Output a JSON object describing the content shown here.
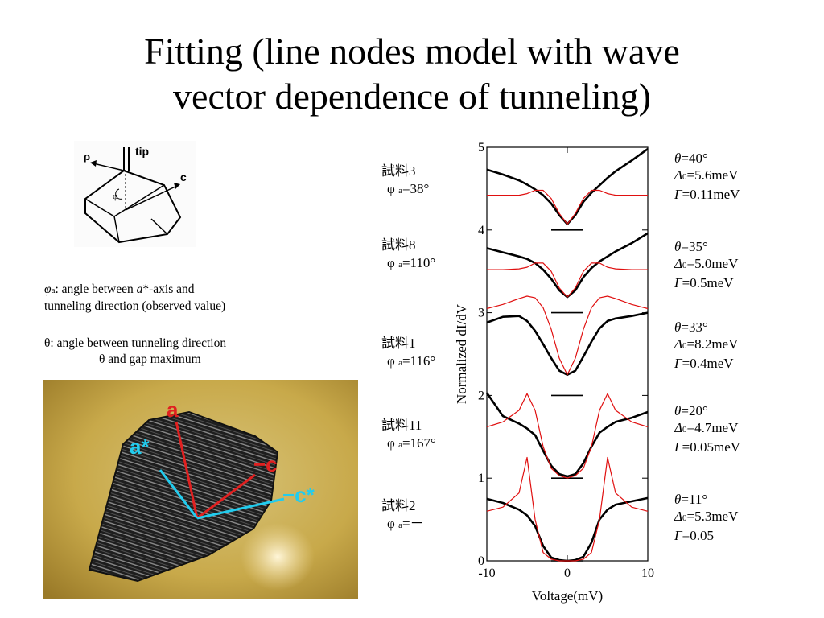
{
  "slide": {
    "title_line1": "Fitting (line nodes model with wave",
    "title_line2": "vector dependence of tunneling)"
  },
  "diagram": {
    "tip_label": "tip",
    "rho_label": "ρ",
    "c_label": "c",
    "phi_label": "φ"
  },
  "notes": {
    "phi_symbol": "φ",
    "phi_sub": "a",
    "phi_text_a": ": angle between ",
    "phi_text_astar": "a",
    "phi_text_b": "*-axis and",
    "phi_line2": "tunneling direction (observed value)",
    "theta_line1": "θ: angle between tunneling direction",
    "theta_line2": "θ and gap maximum"
  },
  "photo": {
    "a": "a",
    "a_star": "a*",
    "minus_c": "−c",
    "minus_c_star": "−c*"
  },
  "samples": [
    {
      "name": "試料3",
      "phi": "φ",
      "sub": "a",
      "value": "=38°"
    },
    {
      "name": "試料8",
      "phi": "φ",
      "sub": "a",
      "value": "=110°"
    },
    {
      "name": "試料1",
      "phi": "φ",
      "sub": "a",
      "value": "=116°"
    },
    {
      "name": "試料11",
      "phi": "φ",
      "sub": "a",
      "value": "=167°"
    },
    {
      "name": "試料2",
      "phi": "φ",
      "sub": "a",
      "value": "=－"
    }
  ],
  "fits": [
    {
      "theta": "θ",
      "theta_val": "=40°",
      "delta": "Δ",
      "delta_sub": "0",
      "delta_val": "=5.6meV",
      "gamma": "Γ",
      "gamma_val": "=0.11meV"
    },
    {
      "theta": "θ",
      "theta_val": "=35°",
      "delta": "Δ",
      "delta_sub": "0",
      "delta_val": "=5.0meV",
      "gamma": "Γ",
      "gamma_val": "=0.5meV"
    },
    {
      "theta": "θ",
      "theta_val": "=33°",
      "delta": "Δ",
      "delta_sub": "0",
      "delta_val": "=8.2meV",
      "gamma": "Γ",
      "gamma_val": "=0.4meV"
    },
    {
      "theta": "θ",
      "theta_val": "=20°",
      "delta": "Δ",
      "delta_sub": "0",
      "delta_val": "=4.7meV",
      "gamma": "Γ",
      "gamma_val": "=0.05meV"
    },
    {
      "theta": "θ",
      "theta_val": "=11°",
      "delta": "Δ",
      "delta_sub": "0",
      "delta_val": "=5.3meV",
      "gamma": "Γ",
      "gamma_val": "=0.05"
    }
  ],
  "chart_data": {
    "type": "line",
    "title": "",
    "xlabel": "Voltage(mV)",
    "ylabel": "Normalized dI/dV",
    "xlim": [
      -10,
      10
    ],
    "ylim": [
      0,
      5
    ],
    "x_ticks": [
      -10,
      0,
      10
    ],
    "y_ticks": [
      0,
      1,
      2,
      3,
      4,
      5
    ],
    "grid": false,
    "legend": "none",
    "colors": {
      "measured": "#000000",
      "fit": "#e01010"
    },
    "x": [
      -10,
      -8,
      -6,
      -5,
      -4,
      -3,
      -2,
      -1,
      0,
      1,
      2,
      3,
      4,
      5,
      6,
      8,
      10
    ],
    "series": [
      {
        "kind": "measured",
        "values": [
          4.73,
          4.67,
          4.6,
          4.55,
          4.49,
          4.42,
          4.32,
          4.18,
          4.07,
          4.18,
          4.34,
          4.45,
          4.54,
          4.63,
          4.71,
          4.84,
          4.98
        ]
      },
      {
        "kind": "fit",
        "values": [
          4.42,
          4.42,
          4.42,
          4.44,
          4.48,
          4.48,
          4.38,
          4.2,
          4.07,
          4.2,
          4.38,
          4.48,
          4.48,
          4.44,
          4.42,
          4.42,
          4.42
        ]
      },
      {
        "kind": "measured",
        "values": [
          3.78,
          3.73,
          3.68,
          3.65,
          3.6,
          3.52,
          3.41,
          3.27,
          3.19,
          3.27,
          3.43,
          3.54,
          3.62,
          3.68,
          3.74,
          3.84,
          3.96
        ]
      },
      {
        "kind": "fit",
        "values": [
          3.52,
          3.52,
          3.53,
          3.55,
          3.6,
          3.6,
          3.5,
          3.3,
          3.19,
          3.3,
          3.5,
          3.6,
          3.6,
          3.55,
          3.53,
          3.52,
          3.52
        ]
      },
      {
        "kind": "measured",
        "values": [
          2.88,
          2.95,
          2.96,
          2.9,
          2.78,
          2.62,
          2.45,
          2.3,
          2.25,
          2.3,
          2.47,
          2.65,
          2.81,
          2.9,
          2.93,
          2.96,
          3.0
        ]
      },
      {
        "kind": "fit",
        "values": [
          3.05,
          3.1,
          3.17,
          3.2,
          3.18,
          3.06,
          2.8,
          2.45,
          2.25,
          2.45,
          2.8,
          3.06,
          3.18,
          3.2,
          3.17,
          3.1,
          3.05
        ]
      },
      {
        "kind": "measured",
        "values": [
          2.03,
          1.75,
          1.66,
          1.6,
          1.52,
          1.33,
          1.15,
          1.05,
          1.02,
          1.05,
          1.18,
          1.38,
          1.55,
          1.62,
          1.68,
          1.73,
          1.8
        ]
      },
      {
        "kind": "fit",
        "values": [
          1.62,
          1.68,
          1.82,
          2.02,
          1.82,
          1.38,
          1.12,
          1.03,
          1.0,
          1.03,
          1.12,
          1.38,
          1.82,
          2.02,
          1.82,
          1.68,
          1.62
        ]
      },
      {
        "kind": "measured",
        "values": [
          0.75,
          0.7,
          0.62,
          0.55,
          0.42,
          0.18,
          0.04,
          0.01,
          0.0,
          0.01,
          0.05,
          0.22,
          0.5,
          0.62,
          0.68,
          0.72,
          0.76
        ]
      },
      {
        "kind": "fit",
        "values": [
          0.6,
          0.65,
          0.82,
          1.25,
          0.5,
          0.1,
          0.02,
          0.0,
          0.0,
          0.0,
          0.02,
          0.1,
          0.5,
          1.25,
          0.82,
          0.65,
          0.6
        ]
      }
    ],
    "zero_marks": [
      4.0,
      3.0,
      2.0,
      1.0,
      0.0
    ]
  }
}
